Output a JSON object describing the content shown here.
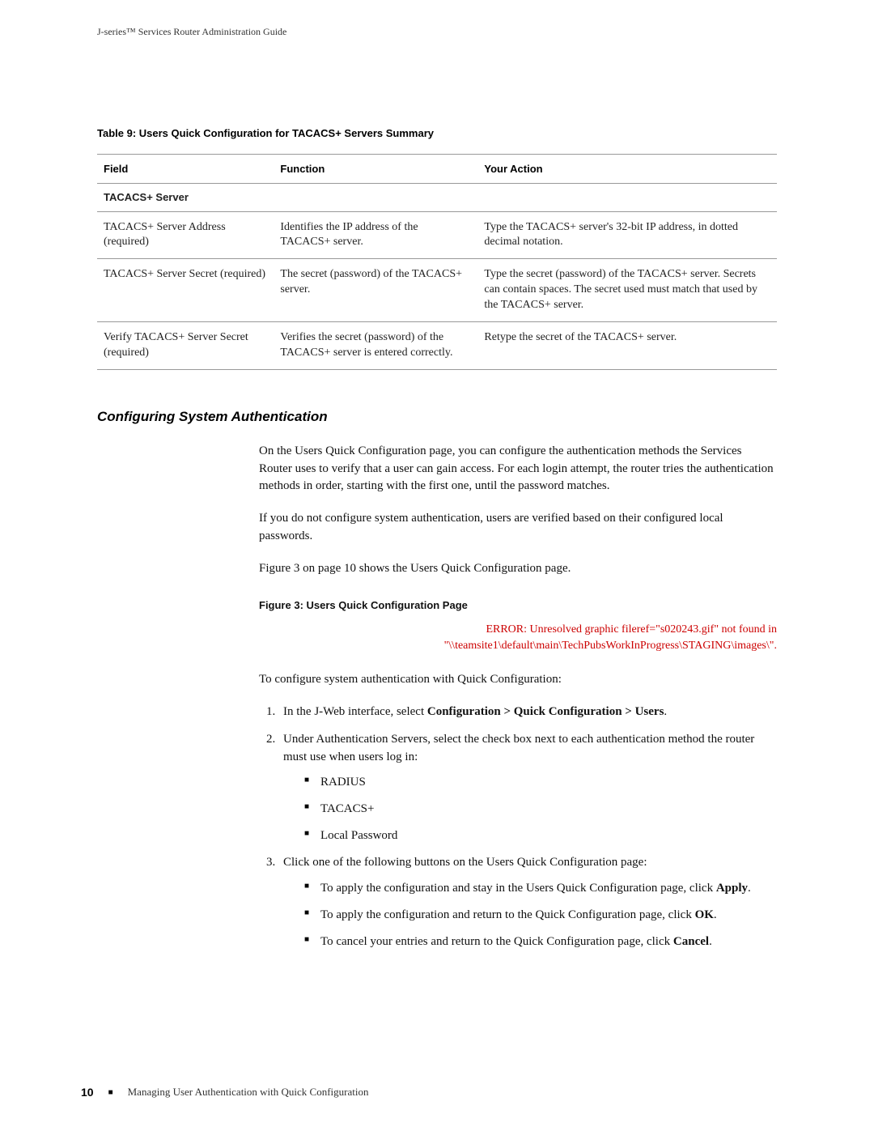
{
  "runningHeader": "J-series™ Services Router Administration Guide",
  "tableCaption": "Table 9: Users Quick Configuration for TACACS+ Servers Summary",
  "table": {
    "headers": {
      "field": "Field",
      "function": "Function",
      "action": "Your Action"
    },
    "sectionLabel": "TACACS+ Server",
    "rows": [
      {
        "field": "TACACS+ Server Address (required)",
        "function": "Identifies the IP address of the TACACS+ server.",
        "action": "Type the TACACS+ server's 32-bit IP address, in dotted decimal notation."
      },
      {
        "field": "TACACS+ Server Secret (required)",
        "function": "The secret (password) of the TACACS+ server.",
        "action": "Type the secret (password) of the TACACS+ server. Secrets can contain spaces. The secret used must match that used by the TACACS+ server."
      },
      {
        "field": "Verify TACACS+ Server Secret (required)",
        "function": "Verifies the secret (password) of the TACACS+ server is entered correctly.",
        "action": "Retype the secret of the TACACS+ server."
      }
    ]
  },
  "sectionHeading": "Configuring System Authentication",
  "paragraphs": {
    "p1": "On the Users Quick Configuration page, you can configure the authentication methods the Services Router uses to verify that a user can gain access. For each login attempt, the router tries the authentication methods in order, starting with the first one, until the password matches.",
    "p2": "If you do not configure system authentication, users are verified based on their configured local passwords.",
    "p3": "Figure 3 on page 10 shows the Users Quick Configuration page."
  },
  "figureCaption": "Figure 3: Users Quick Configuration Page",
  "errorLine1": "ERROR: Unresolved graphic fileref=\"s020243.gif\" not found in",
  "errorLine2": "\"\\\\teamsite1\\default\\main\\TechPubsWorkInProgress\\STAGING\\images\\\".",
  "introLine": "To configure system authentication with Quick Configuration:",
  "steps": {
    "s1_pre": "In the J-Web interface, select ",
    "s1_bold": "Configuration > Quick Configuration > Users",
    "s1_post": ".",
    "s2": "Under Authentication Servers, select the check box next to each authentication method the router must use when users log in:",
    "s2_items": {
      "a": "RADIUS",
      "b": "TACACS+",
      "c": "Local Password"
    },
    "s3": "Click one of the following buttons on the Users Quick Configuration page:",
    "s3a_pre": "To apply the configuration and stay in the Users Quick Configuration page, click ",
    "s3a_bold": "Apply",
    "s3a_post": ".",
    "s3b_pre": "To apply the configuration and return to the Quick Configuration page, click ",
    "s3b_bold": "OK",
    "s3b_post": ".",
    "s3c_pre": "To cancel your entries and return to the Quick Configuration page, click ",
    "s3c_bold": "Cancel",
    "s3c_post": "."
  },
  "footer": {
    "pageNumber": "10",
    "text": "Managing User Authentication with Quick Configuration"
  }
}
